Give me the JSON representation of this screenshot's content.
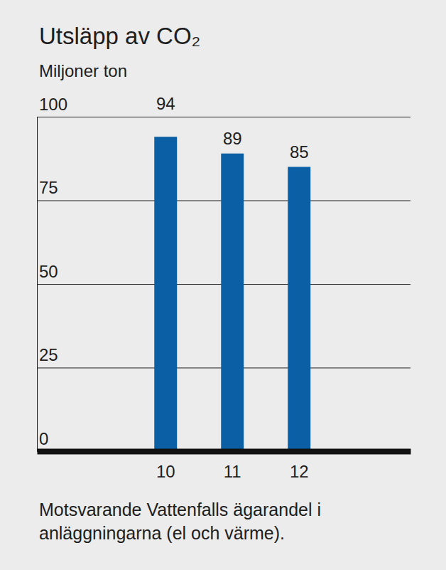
{
  "chart_data": {
    "type": "bar",
    "title": "Utsläpp av CO₂",
    "y_label": "Miljoner ton",
    "note": "Motsvarande Vattenfalls ägarandel i anläggningarna (el och värme).",
    "categories": [
      "10",
      "11",
      "12"
    ],
    "values": [
      94,
      89,
      85
    ],
    "color": "#0b5fa5",
    "ylim": [
      0,
      100
    ],
    "yticks": [
      0,
      25,
      50,
      75,
      100
    ],
    "grid": true,
    "data_labels": true
  }
}
